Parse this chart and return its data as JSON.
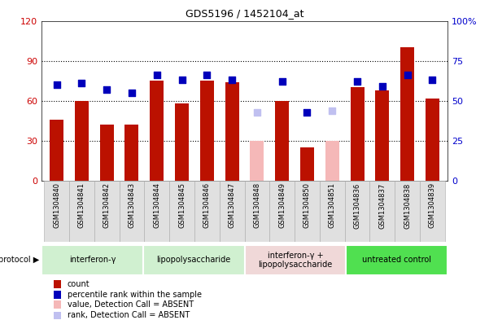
{
  "title": "GDS5196 / 1452104_at",
  "samples": [
    "GSM1304840",
    "GSM1304841",
    "GSM1304842",
    "GSM1304843",
    "GSM1304844",
    "GSM1304845",
    "GSM1304846",
    "GSM1304847",
    "GSM1304848",
    "GSM1304849",
    "GSM1304850",
    "GSM1304851",
    "GSM1304836",
    "GSM1304837",
    "GSM1304838",
    "GSM1304839"
  ],
  "count_values": [
    46,
    60,
    42,
    42,
    75,
    58,
    75,
    74,
    30,
    60,
    25,
    30,
    70,
    68,
    100,
    62
  ],
  "count_absent": [
    false,
    false,
    false,
    false,
    false,
    false,
    false,
    false,
    true,
    false,
    false,
    true,
    false,
    false,
    false,
    false
  ],
  "rank_values": [
    60,
    61,
    57,
    55,
    66,
    63,
    66,
    63,
    43,
    62,
    43,
    44,
    62,
    59,
    66,
    63
  ],
  "rank_absent": [
    false,
    false,
    false,
    false,
    false,
    false,
    false,
    false,
    true,
    false,
    false,
    true,
    false,
    false,
    false,
    false
  ],
  "groups": [
    {
      "label": "interferon-γ",
      "start": 0,
      "end": 4,
      "color": "#d0f0d0"
    },
    {
      "label": "lipopolysaccharide",
      "start": 4,
      "end": 8,
      "color": "#d0f0d0"
    },
    {
      "label": "interferon-γ +\nlipopolysaccharide",
      "start": 8,
      "end": 12,
      "color": "#f0d8d8"
    },
    {
      "label": "untreated control",
      "start": 12,
      "end": 16,
      "color": "#50e050"
    }
  ],
  "bar_color": "#bb1100",
  "absent_bar_color": "#f5b8b8",
  "rank_color": "#0000bb",
  "absent_rank_color": "#c0c0f0",
  "ylim_left": [
    0,
    120
  ],
  "ylim_right": [
    0,
    100
  ],
  "yticks_left": [
    0,
    30,
    60,
    90,
    120
  ],
  "yticks_right": [
    0,
    25,
    50,
    75,
    100
  ],
  "ylabel_left_color": "#cc0000",
  "ylabel_right_color": "#0000cc",
  "bar_width": 0.55,
  "rank_marker_size": 36
}
